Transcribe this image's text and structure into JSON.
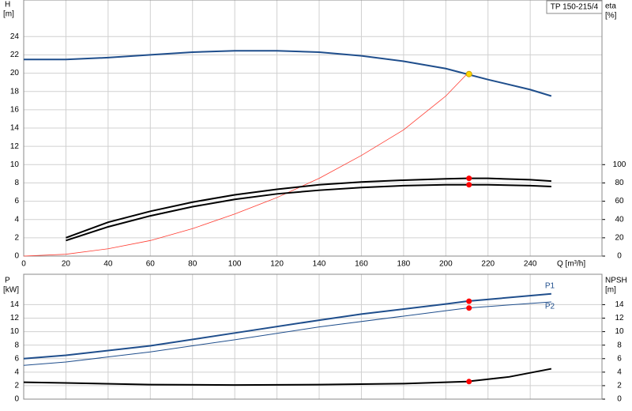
{
  "chart_data": [
    {
      "type": "line",
      "title": "TP 150-215/4",
      "y_label": "H",
      "y_unit": "[m]",
      "y2_label": "eta",
      "y2_unit": "[%]",
      "x_label": "Q [m³/h]",
      "xlim": [
        0,
        274
      ],
      "xticks": [
        0,
        20,
        40,
        60,
        80,
        100,
        120,
        140,
        160,
        180,
        200,
        220,
        240
      ],
      "ylim": [
        0,
        28
      ],
      "yticks": [
        0,
        2,
        4,
        6,
        8,
        10,
        12,
        14,
        16,
        18,
        20,
        22,
        24
      ],
      "y2lim": [
        0,
        280
      ],
      "y2ticks": [
        0,
        20,
        40,
        60,
        80,
        100
      ],
      "grid": true,
      "series": [
        {
          "color": "#1f4e8c",
          "width": 2,
          "x": [
            0,
            20,
            40,
            60,
            80,
            100,
            120,
            140,
            160,
            180,
            200,
            210,
            220,
            240,
            250
          ],
          "values": [
            21.5,
            21.5,
            21.7,
            22.0,
            22.3,
            22.45,
            22.45,
            22.3,
            21.9,
            21.3,
            20.5,
            19.9,
            19.3,
            18.2,
            17.5
          ]
        },
        {
          "color": "#ff3b30",
          "width": 0.8,
          "x": [
            0,
            20,
            40,
            60,
            80,
            100,
            120,
            140,
            160,
            180,
            200,
            210
          ],
          "values": [
            0,
            0.2,
            0.8,
            1.7,
            3.0,
            4.6,
            6.4,
            8.5,
            11,
            13.8,
            17.5,
            19.9
          ]
        },
        {
          "color": "#000000",
          "width": 2,
          "axis": "y2",
          "x": [
            20,
            40,
            60,
            80,
            100,
            120,
            140,
            160,
            180,
            200,
            210,
            220,
            240,
            250
          ],
          "values": [
            20,
            37,
            49,
            59,
            67,
            73,
            78,
            81,
            83,
            84.5,
            85,
            85,
            83.5,
            82
          ]
        },
        {
          "color": "#000000",
          "width": 2,
          "axis": "y2",
          "x": [
            20,
            40,
            60,
            80,
            100,
            120,
            140,
            160,
            180,
            200,
            210,
            220,
            240,
            250
          ],
          "values": [
            17,
            32,
            44,
            54,
            62,
            68,
            72,
            75,
            77,
            78,
            78,
            78,
            77,
            76
          ]
        }
      ],
      "points": [
        {
          "x": 211,
          "y": 85,
          "axis": "y2",
          "color": "#ff0000"
        },
        {
          "x": 211,
          "y": 78,
          "axis": "y2",
          "color": "#ff0000"
        },
        {
          "x": 211,
          "y": 19.9,
          "color": "#ffd700"
        }
      ]
    },
    {
      "type": "line",
      "y_label": "P",
      "y_unit": "[kW]",
      "y2_label": "NPSH",
      "y2_unit": "[m]",
      "xlim": [
        0,
        274
      ],
      "ylim": [
        0,
        18.5
      ],
      "yticks": [
        0,
        2,
        4,
        6,
        8,
        10,
        12,
        14
      ],
      "y2lim": [
        0,
        18.5
      ],
      "y2ticks": [
        0,
        2,
        4,
        6,
        8,
        10,
        12,
        14
      ],
      "grid": true,
      "series": [
        {
          "name": "P1",
          "color": "#1f4e8c",
          "width": 2,
          "x": [
            0,
            20,
            60,
            100,
            140,
            160,
            200,
            210,
            250
          ],
          "values": [
            6.0,
            6.5,
            7.9,
            9.8,
            11.7,
            12.6,
            14.1,
            14.5,
            15.6
          ]
        },
        {
          "name": "P2",
          "color": "#1f4e8c",
          "width": 1,
          "x": [
            0,
            20,
            60,
            100,
            140,
            200,
            210,
            250
          ],
          "values": [
            5.0,
            5.5,
            7.0,
            8.8,
            10.7,
            13.1,
            13.5,
            14.4
          ]
        },
        {
          "color": "#000000",
          "width": 2,
          "axis": "y2",
          "x": [
            0,
            20,
            60,
            100,
            140,
            180,
            200,
            210,
            230,
            250
          ],
          "values": [
            2.5,
            2.4,
            2.15,
            2.1,
            2.15,
            2.3,
            2.5,
            2.6,
            3.3,
            4.5
          ]
        }
      ],
      "points": [
        {
          "x": 211,
          "y": 14.5,
          "color": "#ff0000"
        },
        {
          "x": 211,
          "y": 13.5,
          "color": "#ff0000"
        },
        {
          "x": 211,
          "y": 2.6,
          "axis": "y2",
          "color": "#ff0000"
        }
      ]
    }
  ]
}
